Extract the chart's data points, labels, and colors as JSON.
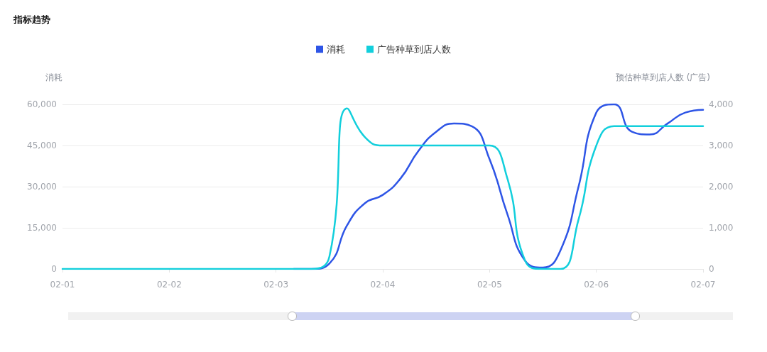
{
  "chart_data": {
    "type": "line",
    "title": "指标趋势",
    "ylabel": "消耗",
    "y2label": "预估种草到店人数 (广告)",
    "categories": [
      "02-01",
      null,
      null,
      null,
      null,
      null,
      "02-02",
      null,
      null,
      null,
      null,
      null,
      "02-03",
      null,
      null,
      null,
      null,
      null,
      "02-04",
      null,
      null,
      null,
      null,
      null,
      "02-05",
      null,
      null,
      null,
      null,
      null,
      "02-06",
      null,
      null,
      null,
      null,
      null,
      "02-07"
    ],
    "series": [
      {
        "name": "消耗",
        "color": "#2e55e6",
        "values": [
          null,
          null,
          null,
          null,
          null,
          null,
          null,
          null,
          null,
          null,
          null,
          null,
          null,
          0,
          0,
          2000,
          16000,
          24000,
          27000,
          33000,
          43000,
          50000,
          53000,
          52000,
          40000,
          20000,
          3000,
          500,
          7000,
          30000,
          57000,
          60000,
          50000,
          49000,
          53000,
          57000,
          58000
        ]
      },
      {
        "name": "广告种草到店人数",
        "color": "#12cfdc",
        "axis": "y2",
        "values": [
          0,
          0,
          0,
          0,
          0,
          0,
          0,
          0,
          0,
          0,
          0,
          0,
          0,
          0,
          0,
          300,
          3900,
          3200,
          3000,
          3000,
          3000,
          3000,
          3000,
          3000,
          3000,
          2200,
          200,
          0,
          0,
          1200,
          3000,
          3470,
          3470,
          3470,
          3470,
          3470,
          3470
        ]
      }
    ],
    "ylim": [
      0,
      60000
    ],
    "yticks": [
      0,
      {
        "value": 15000,
        "label": "15,000"
      },
      {
        "value": 30000,
        "label": "30,000"
      },
      {
        "value": 45000,
        "label": "45,000"
      },
      {
        "value": 60000,
        "label": "60,000"
      }
    ],
    "y2lim": [
      0,
      4000
    ],
    "y2ticks": [
      0,
      {
        "value": 1000,
        "label": "1,000"
      },
      {
        "value": 2000,
        "label": "2,000"
      },
      {
        "value": 3000,
        "label": "3,000"
      },
      {
        "value": 4000,
        "label": "4,000"
      }
    ],
    "grid": "y",
    "legend": "top",
    "marker": "none",
    "line_style": "solid"
  }
}
